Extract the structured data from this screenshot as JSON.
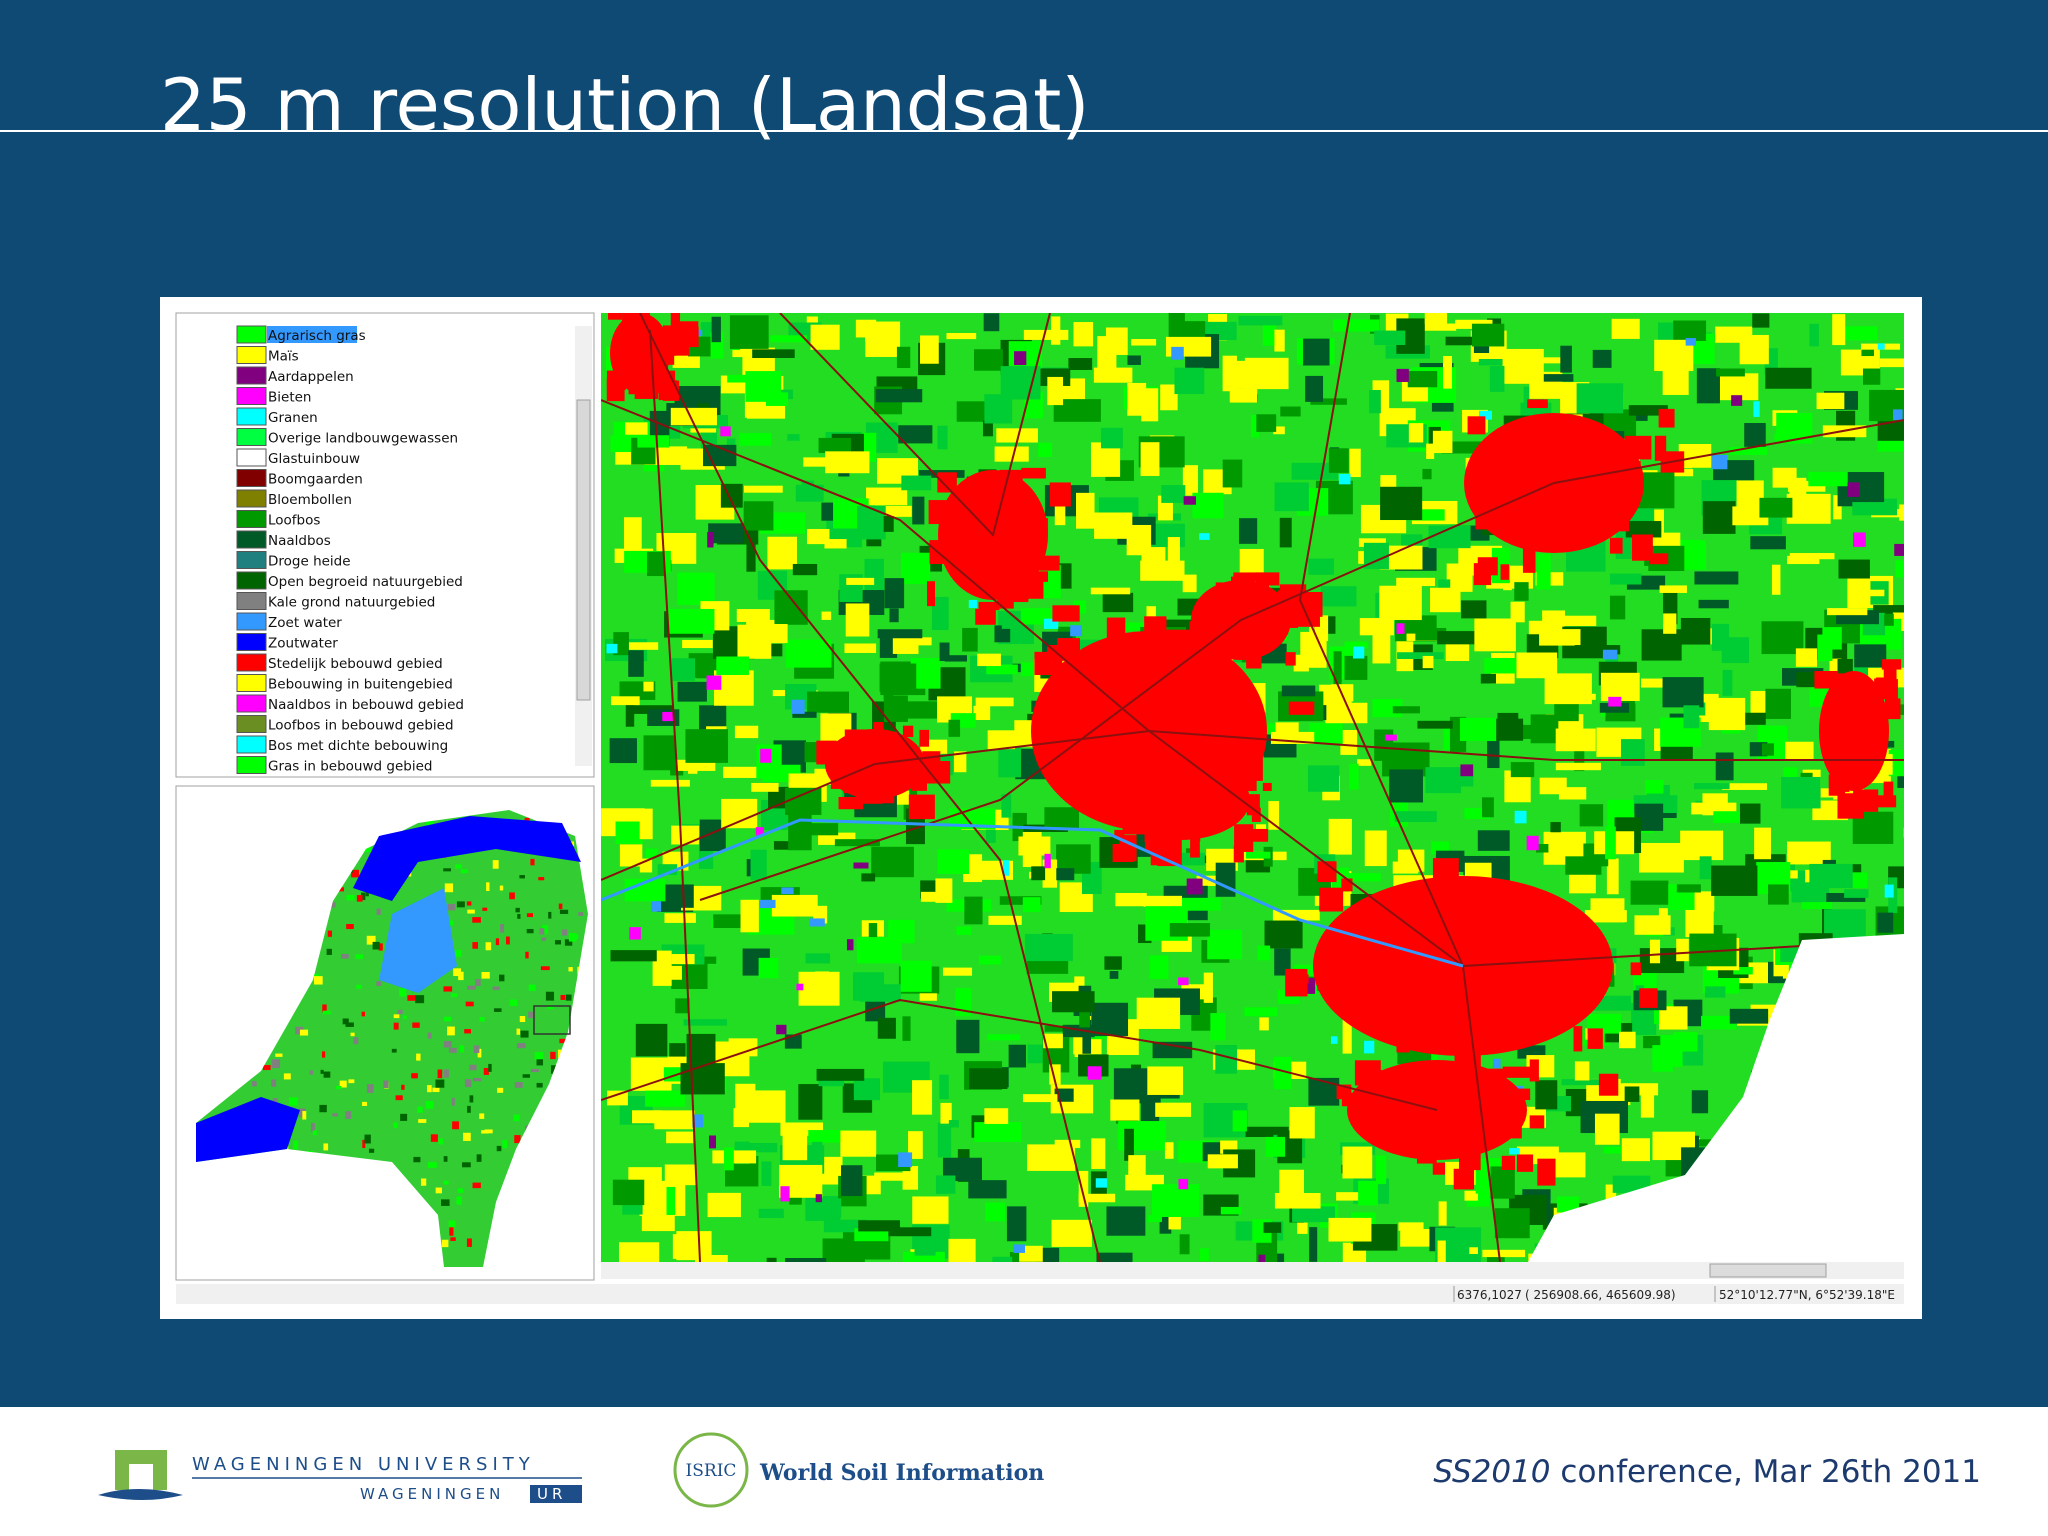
{
  "slide": {
    "title": "25 m resolution (Landsat)"
  },
  "legend": {
    "items": [
      {
        "label": "Agrarisch gras",
        "color": "#00ff00"
      },
      {
        "label": "Maïs",
        "color": "#ffff00"
      },
      {
        "label": "Aardappelen",
        "color": "#800080"
      },
      {
        "label": "Bieten",
        "color": "#ff00ff"
      },
      {
        "label": "Granen",
        "color": "#00ffff"
      },
      {
        "label": "Overige landbouwgewassen",
        "color": "#00ff40"
      },
      {
        "label": "Glastuinbouw",
        "color": "#ffffff"
      },
      {
        "label": "Boomgaarden",
        "color": "#800000"
      },
      {
        "label": "Bloembollen",
        "color": "#808000"
      },
      {
        "label": "Loofbos",
        "color": "#009900"
      },
      {
        "label": "Naaldbos",
        "color": "#005a28"
      },
      {
        "label": "Droge heide",
        "color": "#208080"
      },
      {
        "label": "Open begroeid natuurgebied",
        "color": "#006400"
      },
      {
        "label": "Kale grond natuurgebied",
        "color": "#808080"
      },
      {
        "label": "Zoet water",
        "color": "#3399ff"
      },
      {
        "label": "Zoutwater",
        "color": "#0000ff"
      },
      {
        "label": "Stedelijk bebouwd gebied",
        "color": "#ff0000"
      },
      {
        "label": "Bebouwing in buitengebied",
        "color": "#ffff00"
      },
      {
        "label": "Naaldbos in bebouwd gebied",
        "color": "#ff00ff"
      },
      {
        "label": "Loofbos in bebouwd gebied",
        "color": "#6b8e23"
      },
      {
        "label": "Bos met dichte bebouwing",
        "color": "#00ffff"
      },
      {
        "label": "Gras in bebouwd gebied",
        "color": "#00ff00"
      }
    ]
  },
  "status_bar": {
    "pixel": "6376,1027",
    "coordinates": "(  256908.66,  465609.98)",
    "latlon": "52°10'12.77\"N, 6°52'39.18\"E"
  },
  "footer": {
    "university": "WAGENINGEN UNIVERSITY",
    "ur_left": "WAGENINGEN",
    "ur_right": "UR",
    "isric": "ISRIC",
    "isric_tagline": "World Soil Information",
    "conference_name": "SS2010",
    "conference_rest": "conference, Mar 26th 2011"
  }
}
